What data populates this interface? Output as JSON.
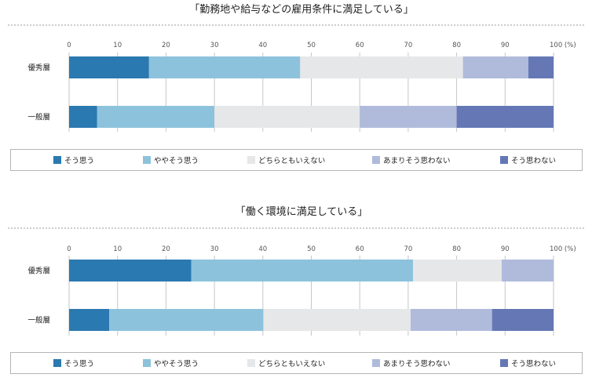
{
  "chart_data": [
    {
      "type": "bar",
      "orientation": "horizontal",
      "stacked": true,
      "title": "「勤務地や給与などの雇用条件に満足している」",
      "categories": [
        "優秀層",
        "一般層"
      ],
      "xlim": [
        0,
        100
      ],
      "ticks": [
        "0",
        "10",
        "20",
        "30",
        "40",
        "50",
        "60",
        "70",
        "80",
        "90",
        "100 (%)"
      ],
      "series": [
        {
          "name": "そう思う",
          "values": [
            16.5,
            5.8
          ]
        },
        {
          "name": "ややそう思う",
          "values": [
            31.2,
            24.2
          ]
        },
        {
          "name": "どちらともいえない",
          "values": [
            33.6,
            30.0
          ]
        },
        {
          "name": "あまりそう思わない",
          "values": [
            13.5,
            20.0
          ]
        },
        {
          "name": "そう思わない",
          "values": [
            5.2,
            20.0
          ]
        }
      ]
    },
    {
      "type": "bar",
      "orientation": "horizontal",
      "stacked": true,
      "title": "「働く環境に満足している」",
      "categories": [
        "優秀層",
        "一般層"
      ],
      "xlim": [
        0,
        100
      ],
      "ticks": [
        "0",
        "10",
        "20",
        "30",
        "40",
        "50",
        "60",
        "70",
        "80",
        "90",
        "100 (%)"
      ],
      "series": [
        {
          "name": "そう思う",
          "values": [
            25.2,
            8.3
          ]
        },
        {
          "name": "ややそう思う",
          "values": [
            45.8,
            31.8
          ]
        },
        {
          "name": "どちらともいえない",
          "values": [
            18.3,
            30.4
          ]
        },
        {
          "name": "あまりそう思わない",
          "values": [
            10.7,
            16.8
          ]
        },
        {
          "name": "そう思わない",
          "values": [
            0,
            12.7
          ]
        }
      ]
    }
  ],
  "colors": [
    "#2a79b0",
    "#8dc2dc",
    "#e6e7e8",
    "#b0bbdc",
    "#6578b5"
  ]
}
